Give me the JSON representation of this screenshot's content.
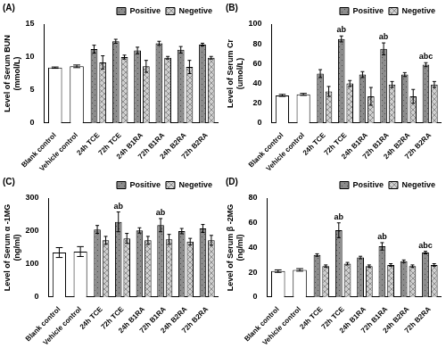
{
  "chart_data": [
    {
      "type": "bar",
      "title": "(A)",
      "y_label": [
        "Level of Serum BUN",
        "(mmol/L)"
      ],
      "categories": [
        "Blank control",
        "Vehicle control",
        "24h TCE",
        "72h TCE",
        "24h B1RA",
        "72h B1RA",
        "24h B2RA",
        "72h B2RA"
      ],
      "series": [
        {
          "name": "Positive",
          "color": "#8c8c8c",
          "values": [
            null,
            null,
            11.2,
            12.4,
            11.0,
            12.1,
            11.1,
            11.9
          ],
          "errors": [
            null,
            null,
            0.6,
            0.3,
            0.5,
            0.3,
            0.5,
            0.2
          ]
        },
        {
          "name": "Negetive",
          "color": "#d0d0d0",
          "values": [
            null,
            null,
            9.2,
            10.0,
            8.6,
            9.9,
            8.5,
            9.9
          ],
          "errors": [
            null,
            null,
            1.0,
            0.3,
            0.9,
            0.2,
            1.0,
            0.2
          ]
        },
        {
          "color": "#ffffff",
          "values": [
            8.4,
            8.6,
            null,
            null,
            null,
            null,
            null,
            null
          ],
          "errors": [
            0.1,
            0.2,
            null,
            null,
            null,
            null,
            null,
            null
          ]
        }
      ],
      "ylim": [
        0,
        15
      ],
      "yticks": [
        0,
        5,
        10,
        15
      ],
      "grid": false,
      "legend": "upper right",
      "annotations": []
    },
    {
      "type": "bar",
      "title": "(B)",
      "y_label": [
        "Level of Serum Cr",
        "(umol/L)"
      ],
      "categories": [
        "Blank control",
        "Vehicle control",
        "24h TCE",
        "72h TCE",
        "24h B1RA",
        "72h B1RA",
        "24h B2RA",
        "72h B2RA"
      ],
      "series": [
        {
          "name": "Positive",
          "color": "#8c8c8c",
          "values": [
            null,
            null,
            50,
            85,
            49,
            75,
            49,
            59
          ],
          "errors": [
            null,
            null,
            4,
            3,
            3,
            6,
            2,
            2
          ]
        },
        {
          "name": "Negetive",
          "color": "#d0d0d0",
          "values": [
            null,
            null,
            32,
            40,
            27,
            39,
            27,
            39
          ],
          "errors": [
            null,
            null,
            5,
            3,
            9,
            3,
            7,
            3
          ]
        },
        {
          "color": "#ffffff",
          "values": [
            28,
            29,
            null,
            null,
            null,
            null,
            null,
            null
          ],
          "errors": [
            1,
            1,
            null,
            null,
            null,
            null,
            null,
            null
          ]
        }
      ],
      "ylim": [
        0,
        100
      ],
      "yticks": [
        0,
        20,
        40,
        60,
        80,
        100
      ],
      "grid": false,
      "legend": "upper right",
      "annotations": [
        {
          "category": "72h TCE",
          "series": "Positive",
          "text": "ab"
        },
        {
          "category": "72h B1RA",
          "series": "Positive",
          "text": "ab"
        },
        {
          "category": "72h B2RA",
          "series": "Positive",
          "text": "abc"
        }
      ]
    },
    {
      "type": "bar",
      "title": "(C)",
      "y_label": [
        "Level of Serum α -1MG",
        "(ng/ml)"
      ],
      "categories": [
        "Blank control",
        "Vehicle control",
        "24h TCE",
        "72h TCE",
        "24h B1RA",
        "72h B1RA",
        "24h B2RA",
        "72h B2RA"
      ],
      "series": [
        {
          "name": "Positive",
          "color": "#8c8c8c",
          "values": [
            null,
            null,
            205,
            228,
            202,
            218,
            200,
            208
          ],
          "errors": [
            null,
            null,
            12,
            30,
            8,
            20,
            8,
            12
          ]
        },
        {
          "name": "Negetive",
          "color": "#d0d0d0",
          "values": [
            null,
            null,
            172,
            178,
            172,
            175,
            168,
            172
          ],
          "errors": [
            null,
            null,
            12,
            15,
            12,
            15,
            10,
            15
          ]
        },
        {
          "color": "#ffffff",
          "values": [
            135,
            138,
            null,
            null,
            null,
            null,
            null,
            null
          ],
          "errors": [
            15,
            15,
            null,
            null,
            null,
            null,
            null,
            null
          ]
        }
      ],
      "ylim": [
        0,
        300
      ],
      "yticks": [
        0,
        100,
        200,
        300
      ],
      "grid": false,
      "legend": "upper right",
      "annotations": [
        {
          "category": "72h TCE",
          "series": "Positive",
          "text": "ab"
        },
        {
          "category": "72h B1RA",
          "series": "Positive",
          "text": "ab"
        }
      ]
    },
    {
      "type": "bar",
      "title": "(D)",
      "y_label": [
        "Level of Serum β -2MG",
        "(ng/ml)"
      ],
      "categories": [
        "Blank control",
        "Vehicle control",
        "24h TCE",
        "72h TCE",
        "24h B1RA",
        "72h B1RA",
        "24h B2RA",
        "72h B2RA"
      ],
      "series": [
        {
          "name": "Positive",
          "color": "#8c8c8c",
          "values": [
            null,
            null,
            34,
            54,
            32,
            41,
            29,
            36
          ],
          "errors": [
            null,
            null,
            1,
            6,
            1,
            3,
            1,
            1
          ]
        },
        {
          "name": "Negetive",
          "color": "#d0d0d0",
          "values": [
            null,
            null,
            25,
            27,
            25,
            26,
            25,
            26
          ],
          "errors": [
            null,
            null,
            1,
            1,
            1,
            1,
            1,
            1
          ]
        },
        {
          "color": "#ffffff",
          "values": [
            21,
            22,
            null,
            null,
            null,
            null,
            null,
            null
          ],
          "errors": [
            1,
            1,
            null,
            null,
            null,
            null,
            null,
            null
          ]
        }
      ],
      "ylim": [
        0,
        80
      ],
      "yticks": [
        0,
        20,
        40,
        60,
        80
      ],
      "grid": false,
      "legend": "upper right",
      "annotations": [
        {
          "category": "72h TCE",
          "series": "Positive",
          "text": "ab"
        },
        {
          "category": "72h B1RA",
          "series": "Positive",
          "text": "ab"
        },
        {
          "category": "72h B2RA",
          "series": "Positive",
          "text": "abc"
        }
      ]
    }
  ]
}
